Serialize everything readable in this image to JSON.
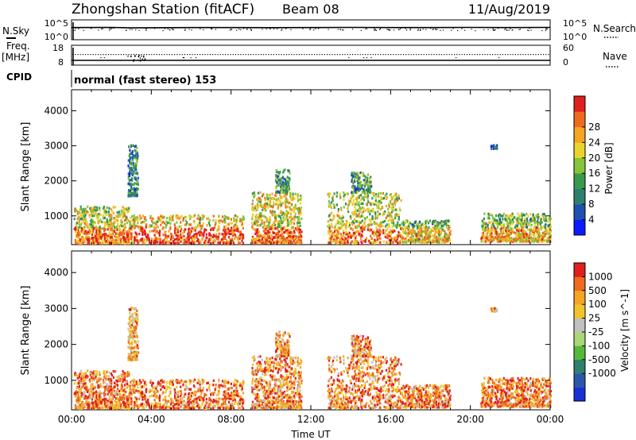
{
  "header": {
    "station": "Zhongshan Station (fitACF)",
    "beam": "Beam 08",
    "date": "11/Aug/2019"
  },
  "left_labels": {
    "nsky": "N.Sky",
    "freq": "Freq.",
    "freq_unit": "[MHz]",
    "cpid": "CPID"
  },
  "right_labels": {
    "nsearch": "N.Search",
    "nave": "Nave"
  },
  "cpid_text": "normal (fast stereo) 153",
  "chart_data": [
    {
      "type": "line",
      "name": "noise",
      "y_ticks": [
        "10^5",
        "10^0"
      ],
      "y2_ticks": [
        "10^5",
        "10^0"
      ],
      "series": [
        {
          "name": "N.Sky",
          "values_hours": [
            0,
            2,
            3,
            4,
            6,
            8,
            10,
            12,
            14,
            16,
            18,
            20,
            22,
            24
          ],
          "values": [
            1500,
            1600,
            1200,
            1300,
            1500,
            1500,
            1400,
            1500,
            1600,
            1500,
            1500,
            1600,
            1500,
            1600
          ]
        },
        {
          "name": "N.Search",
          "values_hours": [
            0,
            4,
            8,
            12,
            16,
            20,
            24
          ],
          "values": [
            1200,
            1100,
            1200,
            1200,
            1300,
            1200,
            1300
          ]
        }
      ]
    },
    {
      "type": "line",
      "name": "frequency-nave",
      "y_ticks": [
        "18",
        "8"
      ],
      "y2_ticks": [
        "60",
        "0"
      ],
      "series": [
        {
          "name": "Freq.",
          "values": [
            10,
            10,
            10,
            10,
            10
          ]
        },
        {
          "name": "Nave",
          "values": [
            30,
            22,
            30,
            30,
            30
          ]
        }
      ]
    },
    {
      "type": "heatmap",
      "name": "power",
      "ylabel": "Slant Range [km]",
      "y_ticks": [
        "1000",
        "2000",
        "3000",
        "4000"
      ],
      "ylim": [
        180,
        4600
      ],
      "colorbar_label": "Power [dB]",
      "colorbar_ticks": [
        "4",
        "8",
        "12",
        "16",
        "20",
        "24",
        "28"
      ],
      "colorbar_colors": [
        "#0a1cff",
        "#1f4fb0",
        "#2f7f6e",
        "#3a9a4c",
        "#86c43c",
        "#e8d52a",
        "#f4a524",
        "#ee6b1e",
        "#e01f1f"
      ],
      "clusters": [
        {
          "t0": 0.1,
          "t1": 3.0,
          "r0": 250,
          "r1": 1300,
          "level": 0.55
        },
        {
          "t0": 3.0,
          "t1": 8.6,
          "r0": 250,
          "r1": 1050,
          "level": 0.65
        },
        {
          "t0": 2.8,
          "t1": 3.3,
          "r0": 1600,
          "r1": 3050,
          "level": 0.3
        },
        {
          "t0": 9.0,
          "t1": 11.5,
          "r0": 250,
          "r1": 1700,
          "level": 0.6
        },
        {
          "t0": 10.2,
          "t1": 10.9,
          "r0": 1700,
          "r1": 2400,
          "level": 0.35
        },
        {
          "t0": 12.8,
          "t1": 16.5,
          "r0": 250,
          "r1": 1700,
          "level": 0.55
        },
        {
          "t0": 14.0,
          "t1": 15.0,
          "r0": 1700,
          "r1": 2300,
          "level": 0.35
        },
        {
          "t0": 16.5,
          "t1": 19.0,
          "r0": 280,
          "r1": 900,
          "level": 0.4
        },
        {
          "t0": 20.5,
          "t1": 24.0,
          "r0": 300,
          "r1": 1100,
          "level": 0.45
        },
        {
          "t0": 21.0,
          "t1": 21.3,
          "r0": 2950,
          "r1": 3050,
          "level": 0.2
        }
      ]
    },
    {
      "type": "heatmap",
      "name": "velocity",
      "xlabel": "Time UT",
      "ylabel": "Slant Range [km]",
      "x_ticks": [
        "00:00",
        "04:00",
        "08:00",
        "12:00",
        "16:00",
        "20:00",
        "00:00"
      ],
      "y_ticks": [
        "1000",
        "2000",
        "3000",
        "4000"
      ],
      "ylim": [
        180,
        4600
      ],
      "colorbar_label": "Velocity [m s^-1]",
      "colorbar_ticks": [
        "1000",
        "500",
        "100",
        "25",
        "-25",
        "-100",
        "-500",
        "-1000"
      ],
      "colorbar_colors": [
        "#1930d8",
        "#2a58a8",
        "#2f7f6e",
        "#55b83a",
        "#a9d67a",
        "#c0c0c0",
        "#f2c32a",
        "#f4a524",
        "#ee6b1e",
        "#e01f1f"
      ],
      "clusters": [
        {
          "t0": 0.1,
          "t1": 3.0,
          "r0": 250,
          "r1": 1300,
          "level": 0.8
        },
        {
          "t0": 3.0,
          "t1": 8.6,
          "r0": 250,
          "r1": 1050,
          "level": 0.82
        },
        {
          "t0": 2.8,
          "t1": 3.3,
          "r0": 1600,
          "r1": 3050,
          "level": 0.7
        },
        {
          "t0": 9.0,
          "t1": 11.5,
          "r0": 250,
          "r1": 1700,
          "level": 0.78
        },
        {
          "t0": 10.2,
          "t1": 10.9,
          "r0": 1700,
          "r1": 2400,
          "level": 0.75
        },
        {
          "t0": 12.8,
          "t1": 16.5,
          "r0": 250,
          "r1": 1700,
          "level": 0.78
        },
        {
          "t0": 14.0,
          "t1": 15.0,
          "r0": 1700,
          "r1": 2300,
          "level": 0.75
        },
        {
          "t0": 16.5,
          "t1": 19.0,
          "r0": 280,
          "r1": 900,
          "level": 0.8
        },
        {
          "t0": 20.5,
          "t1": 24.0,
          "r0": 300,
          "r1": 1100,
          "level": 0.8
        },
        {
          "t0": 21.0,
          "t1": 21.3,
          "r0": 2950,
          "r1": 3050,
          "level": 0.7
        }
      ]
    }
  ]
}
